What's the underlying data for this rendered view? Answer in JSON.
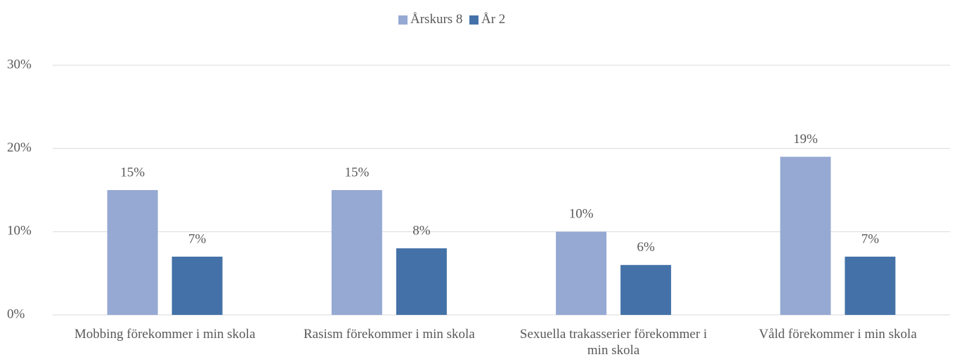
{
  "chart_data": {
    "type": "bar",
    "categories": [
      "Mobbing förekommer i min skola",
      "Rasism förekommer i min skola",
      "Sexuella trakasserier förekommer i min skola",
      "Våld förekommer i min skola"
    ],
    "series": [
      {
        "name": "Årskurs 8",
        "color": "#95a9d2",
        "values": [
          15,
          15,
          10,
          19
        ],
        "value_labels": [
          "15%",
          "15%",
          "10%",
          "19%"
        ]
      },
      {
        "name": "År 2",
        "color": "#4472a8",
        "values": [
          7,
          8,
          6,
          7
        ],
        "value_labels": [
          "7%",
          "8%",
          "6%",
          "7%"
        ]
      }
    ],
    "ylim": [
      0,
      30
    ],
    "yticks": [
      {
        "value": 0,
        "label": "0%"
      },
      {
        "value": 10,
        "label": "10%"
      },
      {
        "value": 20,
        "label": "20%"
      },
      {
        "value": 30,
        "label": "30%"
      }
    ],
    "grid": true,
    "legend": "top"
  }
}
